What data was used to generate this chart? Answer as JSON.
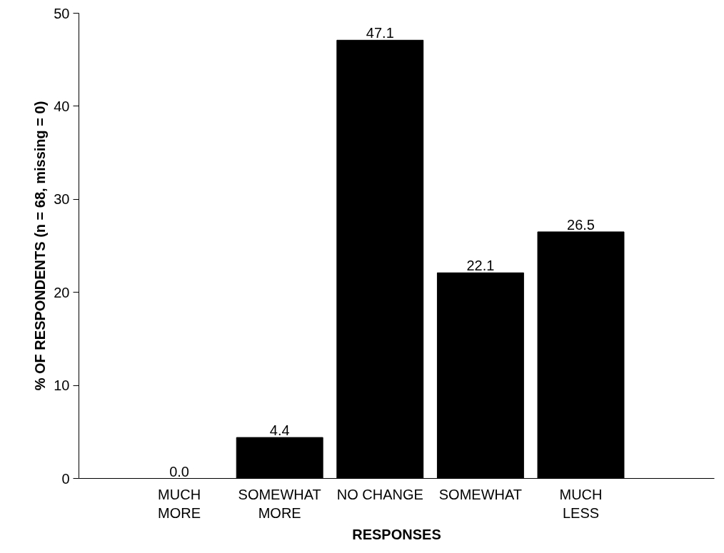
{
  "chart_data": {
    "type": "bar",
    "categories": [
      "MUCH\nMORE",
      "SOMEWHAT\nMORE",
      "NO CHANGE",
      "SOMEWHAT",
      "MUCH\nLESS"
    ],
    "values": [
      0.0,
      4.4,
      47.1,
      22.1,
      26.5
    ],
    "color": "#000000",
    "xlabel": "RESPONSES",
    "ylabel": "% OF RESPONDENTS (n = 68, missing = 0)",
    "ylim": [
      0,
      50
    ],
    "yticks": [
      0,
      10,
      20,
      30,
      40,
      50
    ],
    "value_labels": [
      "0.0",
      "4.4",
      "47.1",
      "22.1",
      "26.5"
    ],
    "grid": false
  }
}
